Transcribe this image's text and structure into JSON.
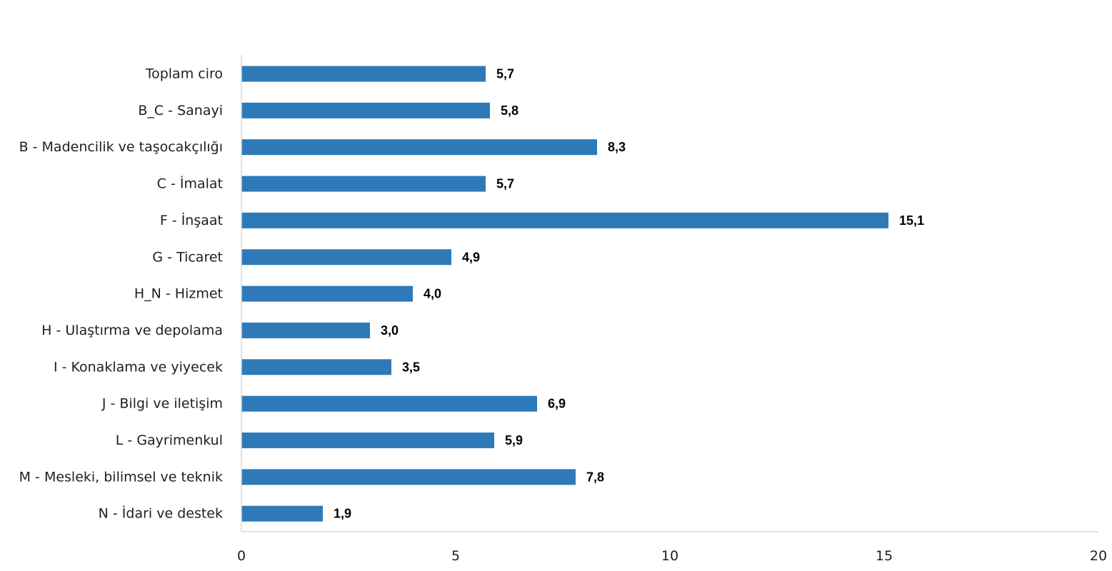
{
  "chart_data": {
    "type": "bar",
    "orientation": "horizontal",
    "title": "",
    "xlabel": "",
    "ylabel": "",
    "categories": [
      "Toplam ciro",
      "B_C - Sanayi",
      "B - Madencilik ve taşocakçılığı",
      "C - İmalat",
      "F - İnşaat",
      "G - Ticaret",
      "H_N - Hizmet",
      "H - Ulaştırma ve depolama",
      "I - Konaklama ve yiyecek",
      "J - Bilgi ve iletişim",
      "L - Gayrimenkul",
      "M - Mesleki, bilimsel ve teknik",
      "N - İdari ve destek"
    ],
    "values": [
      5.7,
      5.8,
      8.3,
      5.7,
      15.1,
      4.9,
      4.0,
      3.0,
      3.5,
      6.9,
      5.9,
      7.8,
      1.9
    ],
    "value_labels": [
      "5,7",
      "5,8",
      "8,3",
      "5,7",
      "15,1",
      "4,9",
      "4,0",
      "3,0",
      "3,5",
      "6,9",
      "5,9",
      "7,8",
      "1,9"
    ],
    "xlim": [
      0,
      20
    ],
    "xticks": [
      0,
      5,
      10,
      15,
      20
    ],
    "xtick_labels": [
      "0",
      "5",
      "10",
      "15",
      "20"
    ],
    "grid": false,
    "legend": "none",
    "bar_color": "#2e7ab8",
    "axis_color": "#d9d9d9"
  }
}
